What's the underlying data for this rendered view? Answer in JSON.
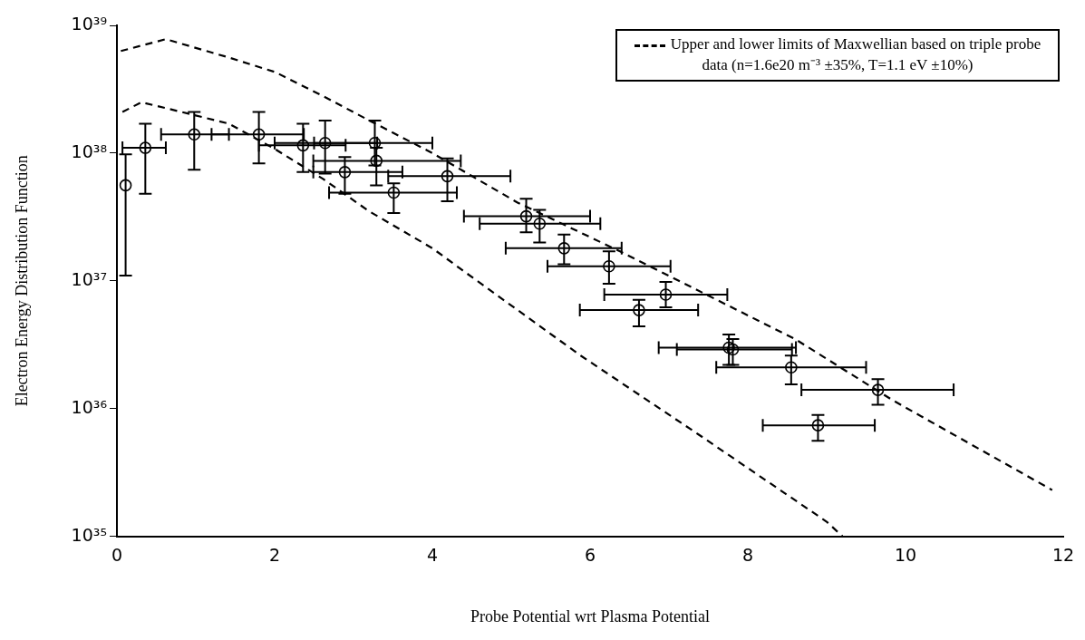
{
  "chart_data": {
    "type": "scatter",
    "xlabel": "Probe Potential wrt Plasma Potential",
    "ylabel": "Electron Energy Distribution Function",
    "xlim": [
      0,
      12
    ],
    "xticks": [
      0,
      2,
      4,
      6,
      8,
      10,
      12
    ],
    "ylim": [
      1e+35,
      1e+39
    ],
    "yticks": [
      {
        "value": 1e+35,
        "label": "10³⁵"
      },
      {
        "value": 1e+36,
        "label": "10³⁶"
      },
      {
        "value": 1e+37,
        "label": "10³⁷"
      },
      {
        "value": 1e+38,
        "label": "10³⁸"
      },
      {
        "value": 1e+39,
        "label": "10³⁹"
      }
    ],
    "log": "y",
    "grid": false,
    "legend": "top right",
    "series": [
      {
        "color": "#000000",
        "marker": "circle",
        "x": [
          0.11,
          0.36,
          0.98,
          1.8,
          2.36,
          2.64,
          2.89,
          3.27,
          3.29,
          3.51,
          4.19,
          5.19,
          5.36,
          5.67,
          6.24,
          6.96,
          6.62,
          7.76,
          7.81,
          8.55,
          9.65,
          8.89
        ],
        "values": [
          5.6e+37,
          1.1e+38,
          1.4e+38,
          1.4e+38,
          1.15e+38,
          1.2e+38,
          7.1e+37,
          1.2e+38,
          8.7e+37,
          4.9e+37,
          6.6e+37,
          3.2e+37,
          2.8e+37,
          1.8e+37,
          1.3e+37,
          7.8e+36,
          5.9e+36,
          3e+36,
          2.9e+36,
          2.1e+36,
          1.4e+36,
          7.4e+35
        ],
        "errors": [
          [
            1.1e+37,
            9.8e+37
          ],
          [
            4.8e+37,
            1.7e+38
          ],
          [
            7.4e+37,
            2.1e+38
          ],
          [
            8.3e+37,
            2.1e+38
          ],
          [
            7.1e+37,
            1.7e+38
          ],
          [
            6.9e+37,
            1.8e+38
          ],
          [
            4.8e+37,
            9.3e+37
          ],
          [
            8e+37,
            1.8e+38
          ],
          [
            5.6e+37,
            1.1e+38
          ],
          [
            3.4e+37,
            5.8e+37
          ],
          [
            4.2e+37,
            9.1e+37
          ],
          [
            2.4e+37,
            4.4e+37
          ],
          [
            2e+37,
            3.6e+37
          ],
          [
            1.35e+37,
            2.3e+37
          ],
          [
            9.5e+36,
            1.7e+37
          ],
          [
            6.2e+36,
            9.8e+36
          ],
          [
            4.4e+36,
            7.1e+36
          ],
          [
            2.2e+36,
            3.8e+36
          ],
          [
            2.2e+36,
            3.5e+36
          ],
          [
            1.55e+36,
            2.6e+36
          ],
          [
            1.07e+36,
            1.7e+36
          ],
          [
            5.6e+35,
            8.9e+35
          ]
        ],
        "xerrors": [
          null,
          [
            0.07,
            0.62
          ],
          [
            0.56,
            1.42
          ],
          [
            1.2,
            2.37
          ],
          [
            1.8,
            2.9
          ],
          [
            2.0,
            3.3
          ],
          [
            2.49,
            3.62
          ],
          [
            2.5,
            4.0
          ],
          [
            2.49,
            4.36
          ],
          [
            2.69,
            4.31
          ],
          [
            3.44,
            4.99
          ],
          [
            4.4,
            6.0
          ],
          [
            4.6,
            6.13
          ],
          [
            4.93,
            6.4
          ],
          [
            5.46,
            7.02
          ],
          [
            6.18,
            7.74
          ],
          [
            5.87,
            7.37
          ],
          [
            6.87,
            8.61
          ],
          [
            7.1,
            8.56
          ],
          [
            7.6,
            9.5
          ],
          [
            8.68,
            10.61
          ],
          [
            8.19,
            9.61
          ]
        ]
      },
      {
        "type": "line",
        "name": "Upper and lower limits of Maxwellian based on triple probe data (n=1.6e20 m⁻³ ±35%, T=1.1 eV ±10%)",
        "color": "#000000",
        "line_style": "dashed",
        "marker": "none",
        "x": [
          0.05,
          0.62,
          1.42,
          2.01,
          2.61,
          3.2,
          4.0,
          5.08,
          6.38,
          8.6,
          9.85,
          11.86
        ],
        "values": [
          6.3e+38,
          7.8e+38,
          5.6e+38,
          4.3e+38,
          2.8e+38,
          1.8e+38,
          1e+38,
          4.1e+37,
          1.7e+37,
          3.5e+36,
          1.15e+36,
          2.3e+35
        ]
      },
      {
        "type": "line",
        "color": "#000000",
        "line_style": "dashed",
        "marker": "none",
        "x": [
          0.07,
          0.31,
          0.82,
          1.42,
          2.01,
          2.61,
          3.2,
          4.0,
          4.39,
          5.88,
          7.37,
          9.0,
          9.2
        ],
        "values": [
          2.1e+38,
          2.5e+38,
          2.1e+38,
          1.7e+38,
          1.07e+38,
          6.3e+37,
          3.5e+37,
          1.8e+37,
          1.2e+37,
          2.6e+36,
          6.3e+35,
          1.3e+35,
          1e+35
        ]
      }
    ]
  }
}
